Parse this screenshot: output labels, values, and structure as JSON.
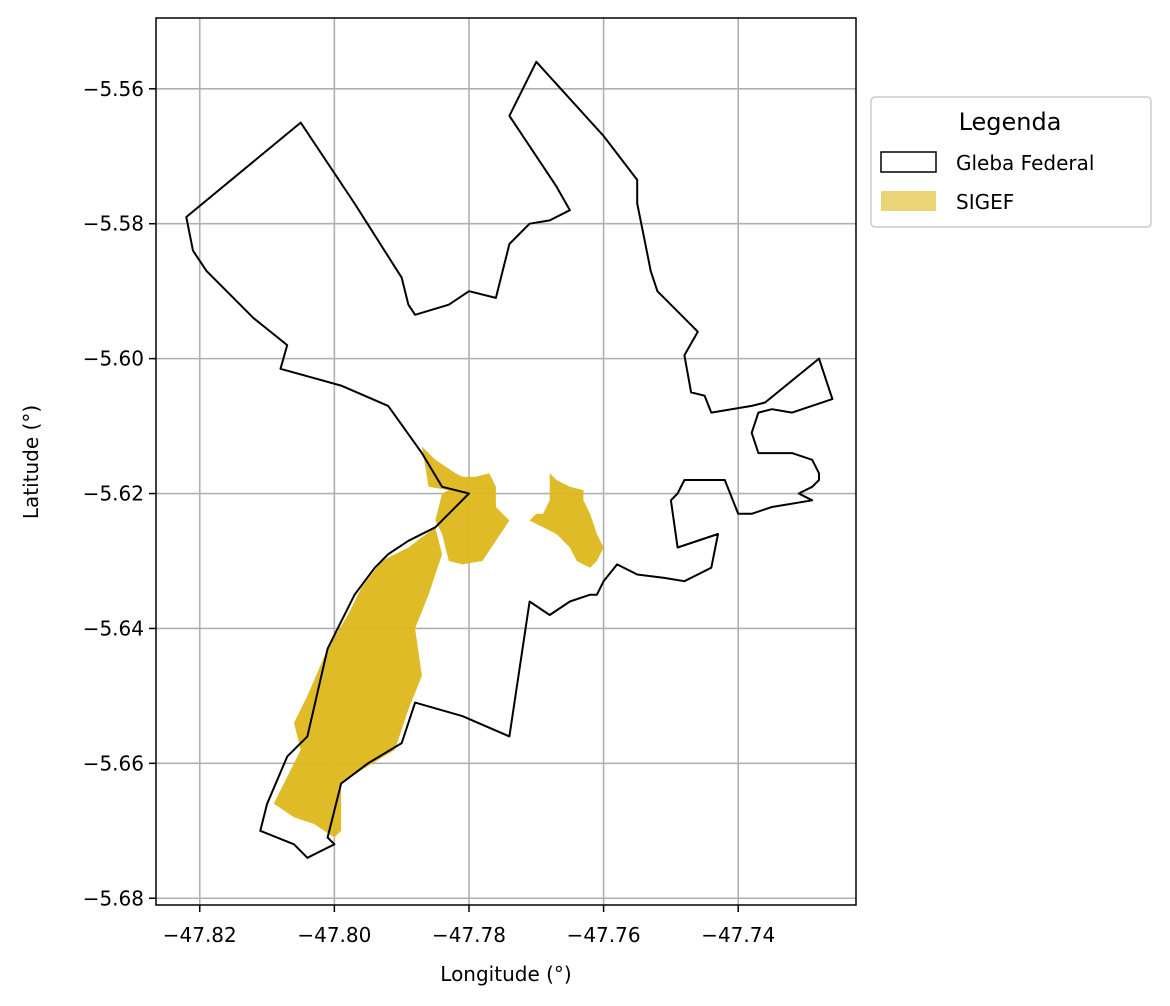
{
  "chart_data": {
    "type": "map",
    "xlabel": "Longitude (°)",
    "ylabel": "Latitude (°)",
    "xlim": [
      -47.8265,
      -47.7225
    ],
    "ylim": [
      -5.681,
      -5.5495
    ],
    "xticks": [
      -47.82,
      -47.8,
      -47.78,
      -47.76,
      -47.74
    ],
    "xtick_labels": [
      "−47.82",
      "−47.80",
      "−47.78",
      "−47.76",
      "−47.74"
    ],
    "yticks": [
      -5.56,
      -5.58,
      -5.6,
      -5.62,
      -5.64,
      -5.66,
      -5.68
    ],
    "ytick_labels": [
      "−5.56",
      "−5.58",
      "−5.60",
      "−5.62",
      "−5.64",
      "−5.66",
      "−5.68"
    ],
    "grid": true,
    "legend": {
      "title": "Legenda",
      "placement": "outside-right-top",
      "entries": [
        {
          "label": "Gleba Federal",
          "style": "outline",
          "edge_color": "#000000"
        },
        {
          "label": "SIGEF",
          "style": "fill",
          "color": "#ddb81b",
          "alpha": 0.6
        }
      ]
    },
    "layers": [
      {
        "name": "Gleba Federal",
        "edge_color": "#000000",
        "fill": "none",
        "polygons": [
          [
            [
              -47.822,
              -5.579
            ],
            [
              -47.805,
              -5.565
            ],
            [
              -47.797,
              -5.577
            ],
            [
              -47.79,
              -5.588
            ],
            [
              -47.789,
              -5.592
            ],
            [
              -47.788,
              -5.5935
            ],
            [
              -47.783,
              -5.592
            ],
            [
              -47.78,
              -5.59
            ],
            [
              -47.776,
              -5.591
            ],
            [
              -47.774,
              -5.583
            ],
            [
              -47.771,
              -5.58
            ],
            [
              -47.768,
              -5.5795
            ],
            [
              -47.765,
              -5.578
            ],
            [
              -47.767,
              -5.5745
            ],
            [
              -47.774,
              -5.564
            ],
            [
              -47.77,
              -5.556
            ],
            [
              -47.76,
              -5.567
            ],
            [
              -47.755,
              -5.5735
            ],
            [
              -47.755,
              -5.577
            ],
            [
              -47.754,
              -5.582
            ],
            [
              -47.753,
              -5.587
            ],
            [
              -47.752,
              -5.59
            ],
            [
              -47.746,
              -5.596
            ],
            [
              -47.748,
              -5.5995
            ],
            [
              -47.747,
              -5.605
            ],
            [
              -47.745,
              -5.6055
            ],
            [
              -47.744,
              -5.608
            ],
            [
              -47.738,
              -5.607
            ],
            [
              -47.736,
              -5.6065
            ],
            [
              -47.728,
              -5.6
            ],
            [
              -47.726,
              -5.606
            ],
            [
              -47.732,
              -5.608
            ],
            [
              -47.735,
              -5.6075
            ],
            [
              -47.737,
              -5.608
            ],
            [
              -47.738,
              -5.611
            ],
            [
              -47.737,
              -5.614
            ],
            [
              -47.732,
              -5.614
            ],
            [
              -47.729,
              -5.615
            ],
            [
              -47.728,
              -5.617
            ],
            [
              -47.728,
              -5.618
            ],
            [
              -47.729,
              -5.619
            ],
            [
              -47.731,
              -5.62
            ],
            [
              -47.729,
              -5.621
            ],
            [
              -47.735,
              -5.622
            ],
            [
              -47.738,
              -5.623
            ],
            [
              -47.74,
              -5.623
            ],
            [
              -47.742,
              -5.618
            ],
            [
              -47.748,
              -5.618
            ],
            [
              -47.749,
              -5.62
            ],
            [
              -47.75,
              -5.621
            ],
            [
              -47.749,
              -5.628
            ],
            [
              -47.743,
              -5.626
            ],
            [
              -47.744,
              -5.631
            ],
            [
              -47.746,
              -5.632
            ],
            [
              -47.748,
              -5.633
            ],
            [
              -47.751,
              -5.6325
            ],
            [
              -47.755,
              -5.632
            ],
            [
              -47.758,
              -5.6305
            ],
            [
              -47.76,
              -5.633
            ],
            [
              -47.761,
              -5.635
            ],
            [
              -47.762,
              -5.635
            ],
            [
              -47.765,
              -5.636
            ],
            [
              -47.768,
              -5.638
            ],
            [
              -47.771,
              -5.636
            ],
            [
              -47.774,
              -5.656
            ],
            [
              -47.781,
              -5.653
            ],
            [
              -47.788,
              -5.651
            ],
            [
              -47.79,
              -5.657
            ],
            [
              -47.795,
              -5.66
            ],
            [
              -47.799,
              -5.663
            ],
            [
              -47.801,
              -5.671
            ],
            [
              -47.8,
              -5.672
            ],
            [
              -47.802,
              -5.673
            ],
            [
              -47.804,
              -5.674
            ],
            [
              -47.806,
              -5.672
            ],
            [
              -47.811,
              -5.67
            ],
            [
              -47.81,
              -5.666
            ],
            [
              -47.807,
              -5.659
            ],
            [
              -47.804,
              -5.656
            ],
            [
              -47.801,
              -5.643
            ],
            [
              -47.799,
              -5.639
            ],
            [
              -47.797,
              -5.635
            ],
            [
              -47.794,
              -5.631
            ],
            [
              -47.792,
              -5.629
            ],
            [
              -47.789,
              -5.627
            ],
            [
              -47.785,
              -5.625
            ],
            [
              -47.78,
              -5.62
            ],
            [
              -47.784,
              -5.619
            ],
            [
              -47.787,
              -5.614
            ],
            [
              -47.792,
              -5.607
            ],
            [
              -47.799,
              -5.604
            ],
            [
              -47.808,
              -5.6015
            ],
            [
              -47.807,
              -5.598
            ],
            [
              -47.812,
              -5.594
            ],
            [
              -47.819,
              -5.587
            ],
            [
              -47.821,
              -5.584
            ],
            [
              -47.822,
              -5.579
            ]
          ]
        ]
      },
      {
        "name": "SIGEF",
        "color": "#ddb81b",
        "polygons": [
          [
            [
              -47.787,
              -5.613
            ],
            [
              -47.785,
              -5.615
            ],
            [
              -47.782,
              -5.617
            ],
            [
              -47.781,
              -5.6175
            ],
            [
              -47.779,
              -5.6175
            ],
            [
              -47.777,
              -5.617
            ],
            [
              -47.776,
              -5.619
            ],
            [
              -47.776,
              -5.622
            ],
            [
              -47.774,
              -5.624
            ],
            [
              -47.776,
              -5.627
            ],
            [
              -47.778,
              -5.63
            ],
            [
              -47.781,
              -5.6305
            ],
            [
              -47.783,
              -5.63
            ],
            [
              -47.784,
              -5.626
            ],
            [
              -47.785,
              -5.624
            ],
            [
              -47.784,
              -5.62
            ],
            [
              -47.783,
              -5.6195
            ],
            [
              -47.786,
              -5.619
            ],
            [
              -47.787,
              -5.613
            ]
          ],
          [
            [
              -47.768,
              -5.617
            ],
            [
              -47.767,
              -5.618
            ],
            [
              -47.765,
              -5.619
            ],
            [
              -47.763,
              -5.6195
            ],
            [
              -47.763,
              -5.621
            ],
            [
              -47.762,
              -5.623
            ],
            [
              -47.761,
              -5.626
            ],
            [
              -47.76,
              -5.628
            ],
            [
              -47.761,
              -5.63
            ],
            [
              -47.762,
              -5.631
            ],
            [
              -47.764,
              -5.63
            ],
            [
              -47.765,
              -5.628
            ],
            [
              -47.767,
              -5.626
            ],
            [
              -47.769,
              -5.625
            ],
            [
              -47.771,
              -5.624
            ],
            [
              -47.77,
              -5.623
            ],
            [
              -47.769,
              -5.623
            ],
            [
              -47.768,
              -5.621
            ],
            [
              -47.768,
              -5.619
            ],
            [
              -47.768,
              -5.617
            ]
          ],
          [
            [
              -47.785,
              -5.625
            ],
            [
              -47.789,
              -5.628
            ],
            [
              -47.793,
              -5.63
            ],
            [
              -47.796,
              -5.634
            ],
            [
              -47.798,
              -5.638
            ],
            [
              -47.801,
              -5.643
            ],
            [
              -47.804,
              -5.65
            ],
            [
              -47.806,
              -5.654
            ],
            [
              -47.805,
              -5.658
            ],
            [
              -47.808,
              -5.664
            ],
            [
              -47.809,
              -5.666
            ],
            [
              -47.806,
              -5.668
            ],
            [
              -47.803,
              -5.669
            ],
            [
              -47.8,
              -5.671
            ],
            [
              -47.799,
              -5.67
            ],
            [
              -47.799,
              -5.663
            ],
            [
              -47.796,
              -5.661
            ],
            [
              -47.791,
              -5.658
            ],
            [
              -47.789,
              -5.652
            ],
            [
              -47.787,
              -5.647
            ],
            [
              -47.788,
              -5.64
            ],
            [
              -47.786,
              -5.635
            ],
            [
              -47.785,
              -5.632
            ],
            [
              -47.784,
              -5.629
            ],
            [
              -47.785,
              -5.625
            ]
          ]
        ]
      }
    ]
  }
}
